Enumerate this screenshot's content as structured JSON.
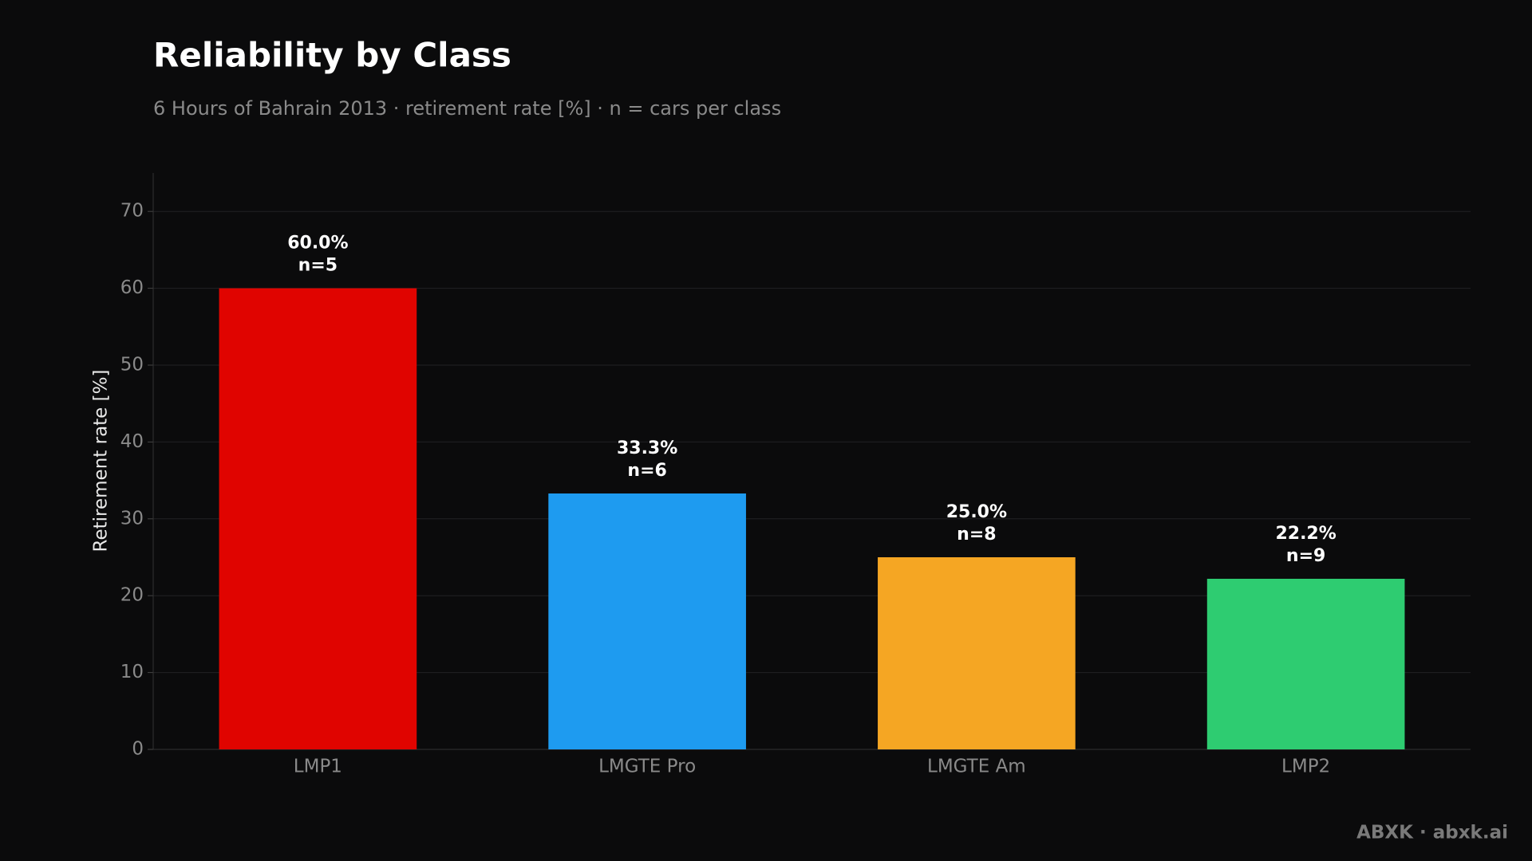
{
  "chart_data": {
    "type": "bar",
    "title": "Reliability by Class",
    "subtitle": "6 Hours of Bahrain 2013 · retirement rate [%] · n = cars per class",
    "y_label": "Retirement rate [%]",
    "categories": [
      "LMP1",
      "LMGTE Pro",
      "LMGTE Am",
      "LMP2"
    ],
    "values": [
      60.0,
      33.3,
      25.0,
      22.2
    ],
    "value_labels": [
      "60.0%",
      "33.3%",
      "25.0%",
      "22.2%"
    ],
    "count_labels": [
      "n=5",
      "n=6",
      "n=8",
      "n=9"
    ],
    "colors": [
      "#e00400",
      "#1e9bf0",
      "#f5a623",
      "#2ecc71"
    ],
    "ylim": [
      0,
      75
    ],
    "yticks": [
      0,
      10,
      20,
      30,
      40,
      50,
      60,
      70
    ],
    "grid": true,
    "footer": "ABXK · abxk.ai"
  }
}
